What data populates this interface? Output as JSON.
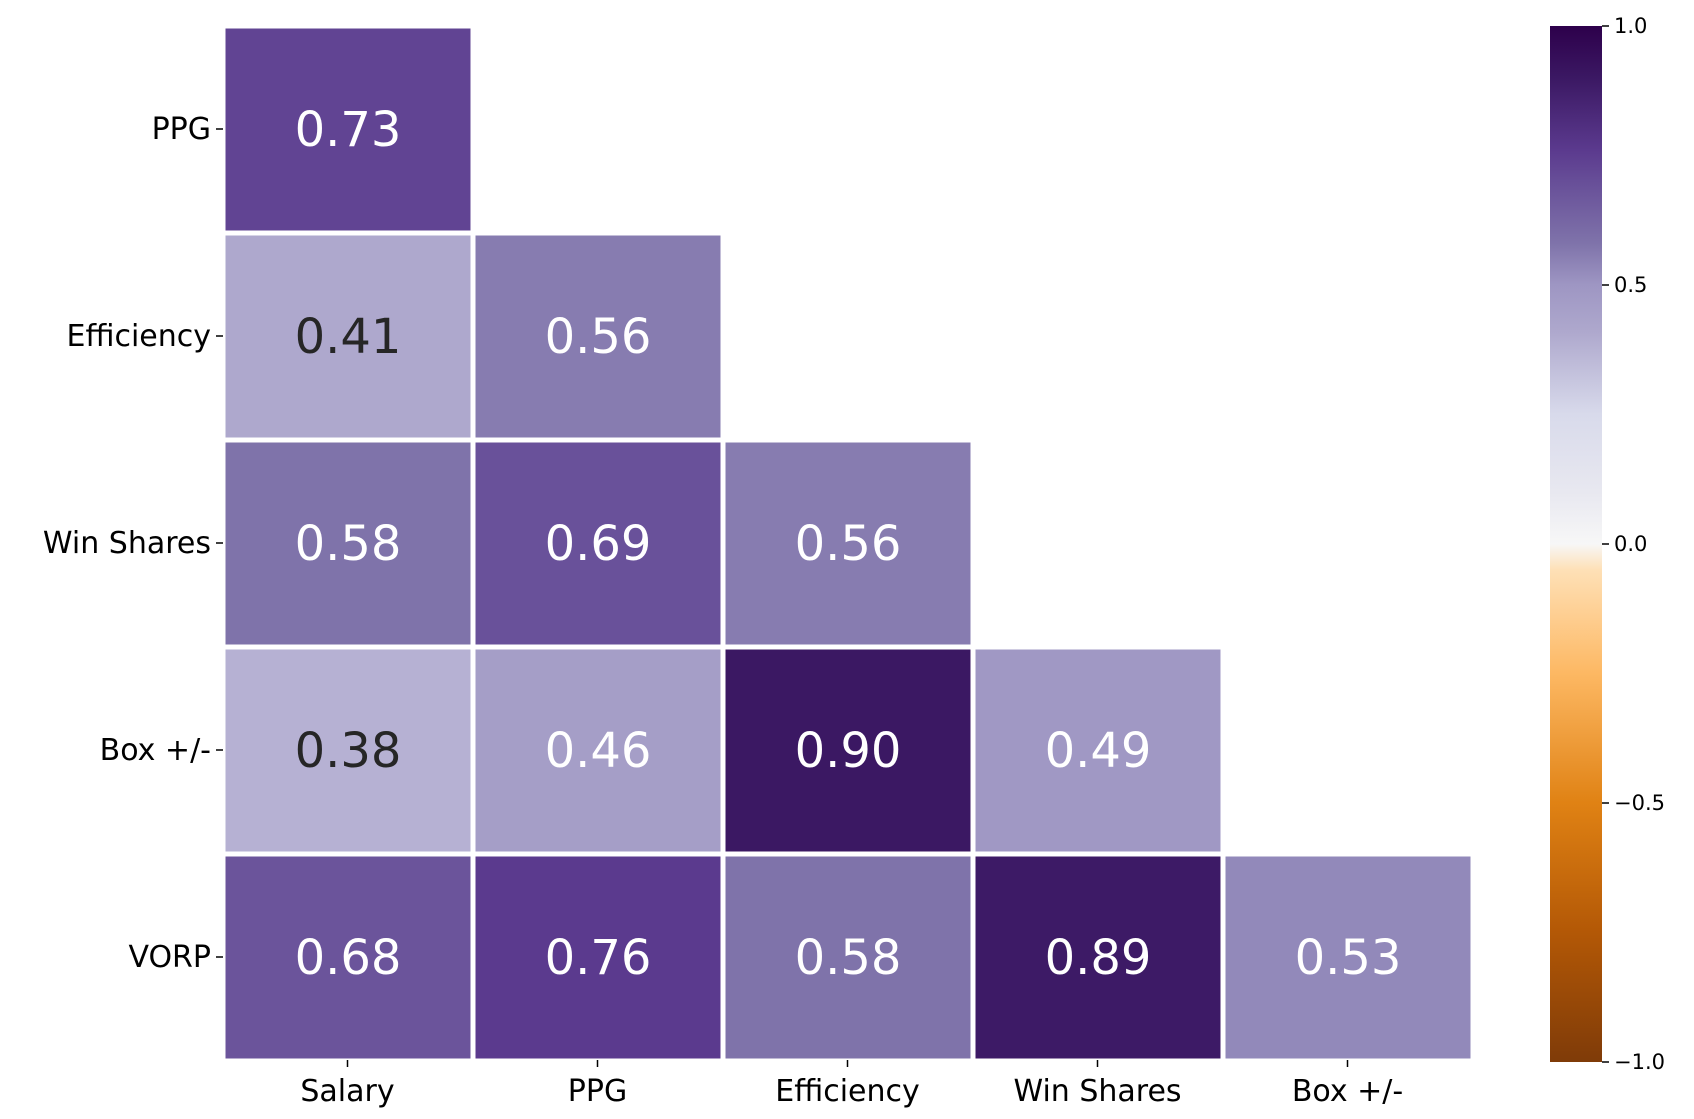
{
  "chart_data": {
    "type": "heatmap",
    "title": "",
    "xlabel": "",
    "ylabel": "",
    "x_categories": [
      "Salary",
      "PPG",
      "Efficiency",
      "Win Shares",
      "Box +/-"
    ],
    "y_categories": [
      "PPG",
      "Efficiency",
      "Win Shares",
      "Box +/-",
      "VORP"
    ],
    "values": [
      [
        0.73,
        null,
        null,
        null,
        null
      ],
      [
        0.41,
        0.56,
        null,
        null,
        null
      ],
      [
        0.58,
        0.69,
        0.56,
        null,
        null
      ],
      [
        0.38,
        0.46,
        0.9,
        0.49,
        null
      ],
      [
        0.68,
        0.76,
        0.58,
        0.89,
        0.53
      ]
    ],
    "value_labels": [
      [
        "0.73",
        "",
        "",
        "",
        ""
      ],
      [
        "0.41",
        "0.56",
        "",
        "",
        ""
      ],
      [
        "0.58",
        "0.69",
        "0.56",
        "",
        ""
      ],
      [
        "0.38",
        "0.46",
        "0.90",
        "0.49",
        ""
      ],
      [
        "0.68",
        "0.76",
        "0.58",
        "0.89",
        "0.53"
      ]
    ],
    "mask": "upper-triangle",
    "colormap": "PuOr",
    "colorbar": {
      "range": [
        -1.0,
        1.0
      ],
      "ticks": [
        1.0,
        0.5,
        0.0,
        -0.5,
        -1.0
      ],
      "tick_labels": [
        "1.0",
        "0.5",
        "0.0",
        "−0.5",
        "−1.0"
      ],
      "placement": "right"
    },
    "grid": false,
    "legend": "none",
    "colors": {
      "stops": [
        {
          "v": -1.0,
          "c": "#7f3b08"
        },
        {
          "v": -0.75,
          "c": "#b35806"
        },
        {
          "v": -0.5,
          "c": "#e08214"
        },
        {
          "v": -0.25,
          "c": "#fdb863"
        },
        {
          "v": -0.05,
          "c": "#fee0b6"
        },
        {
          "v": 0.0,
          "c": "#f7f7f7"
        },
        {
          "v": 0.1,
          "c": "#e8e8f0"
        },
        {
          "v": 0.25,
          "c": "#d8daeb"
        },
        {
          "v": 0.41,
          "c": "#aea8cd"
        },
        {
          "v": 0.5,
          "c": "#9e96c3"
        },
        {
          "v": 0.58,
          "c": "#7f73aa"
        },
        {
          "v": 0.7,
          "c": "#674e98"
        },
        {
          "v": 0.76,
          "c": "#5b3a8e"
        },
        {
          "v": 0.9,
          "c": "#3b1863"
        },
        {
          "v": 1.0,
          "c": "#2d004b"
        }
      ],
      "text_light": "#ffffff",
      "text_dark": "#262626",
      "cell_border": "#ffffff"
    }
  }
}
